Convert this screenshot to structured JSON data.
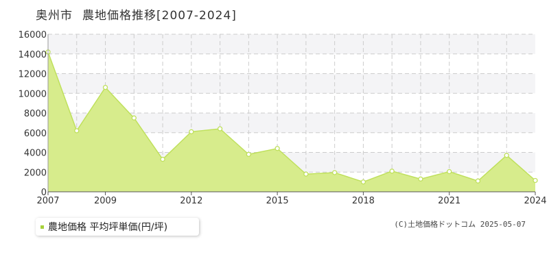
{
  "header": {
    "region": "奥州市",
    "subject": "農地価格推移[2007-2024]"
  },
  "legend": {
    "label": "農地価格 平均坪単価(円/坪)",
    "color": "#a8d13c"
  },
  "copyright": "(C)土地価格ドットコム 2025-05-07",
  "colors": {
    "area_fill": "#d7ec8c",
    "line": "#bfe05c",
    "band": "#f4f4f6",
    "grid": "#cccccc"
  },
  "chart_data": {
    "type": "area",
    "title": "奥州市 農地価格推移[2007-2024]",
    "xlabel": "",
    "ylabel": "",
    "x": [
      2007,
      2008,
      2009,
      2010,
      2011,
      2012,
      2013,
      2014,
      2015,
      2016,
      2017,
      2018,
      2019,
      2020,
      2021,
      2022,
      2023,
      2024
    ],
    "series": [
      {
        "name": "農地価格 平均坪単価(円/坪)",
        "values": [
          14200,
          6200,
          10600,
          7500,
          3300,
          6100,
          6400,
          3800,
          4400,
          1800,
          1950,
          1000,
          2100,
          1300,
          2050,
          1100,
          3700,
          1150
        ]
      }
    ],
    "xlim": [
      2007,
      2024
    ],
    "ylim": [
      0,
      16000
    ],
    "x_tick_labels": [
      "2007",
      "2009",
      "2012",
      "2015",
      "2018",
      "2021",
      "2024"
    ],
    "y_tick_labels": [
      "0",
      "2000",
      "4000",
      "6000",
      "8000",
      "10000",
      "12000",
      "14000",
      "16000"
    ],
    "grid": true,
    "legend_position": "bottom-left"
  }
}
